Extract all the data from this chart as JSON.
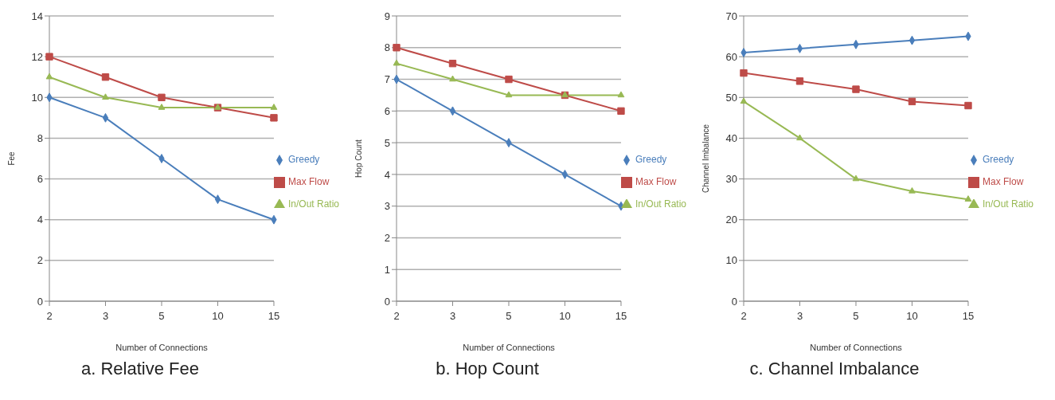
{
  "chart_data": [
    {
      "type": "line",
      "title": "a. Relative Fee",
      "xlabel": "Number of Connections",
      "ylabel": "Fee",
      "categories": [
        "2",
        "3",
        "5",
        "10",
        "15"
      ],
      "ylim": [
        0,
        14
      ],
      "yticks": [
        0,
        2,
        4,
        6,
        8,
        10,
        12,
        14
      ],
      "grid": "y",
      "legend": "right",
      "line_style": "solid",
      "series": [
        {
          "name": "Greedy",
          "color": "#4a7ebb",
          "marker": "diamond",
          "values": [
            10,
            9,
            7,
            5,
            4
          ]
        },
        {
          "name": "Max Flow",
          "color": "#be4b48",
          "marker": "square",
          "values": [
            12,
            11,
            10,
            9.5,
            9
          ]
        },
        {
          "name": "In/Out Ratio",
          "color": "#98b954",
          "marker": "triangle",
          "values": [
            11,
            10,
            9.5,
            9.5,
            9.5
          ]
        }
      ]
    },
    {
      "type": "line",
      "title": "b. Hop Count",
      "xlabel": "Number of Connections",
      "ylabel": "Hop Count",
      "categories": [
        "2",
        "3",
        "5",
        "10",
        "15"
      ],
      "ylim": [
        0,
        9
      ],
      "yticks": [
        0,
        1,
        2,
        3,
        4,
        5,
        6,
        7,
        8,
        9
      ],
      "grid": "y",
      "legend": "right",
      "line_style": "solid",
      "series": [
        {
          "name": "Greedy",
          "color": "#4a7ebb",
          "marker": "diamond",
          "values": [
            7,
            6,
            5,
            4,
            3
          ]
        },
        {
          "name": "Max Flow",
          "color": "#be4b48",
          "marker": "square",
          "values": [
            8,
            7.5,
            7,
            6.5,
            6
          ]
        },
        {
          "name": "In/Out Ratio",
          "color": "#98b954",
          "marker": "triangle",
          "values": [
            7.5,
            7,
            6.5,
            6.5,
            6.5
          ]
        }
      ]
    },
    {
      "type": "line",
      "title": "c. Channel Imbalance",
      "xlabel": "Number of Connections",
      "ylabel": "Channel Imbalance",
      "categories": [
        "2",
        "3",
        "5",
        "10",
        "15"
      ],
      "ylim": [
        0,
        70
      ],
      "yticks": [
        0,
        10,
        20,
        30,
        40,
        50,
        60,
        70
      ],
      "grid": "y",
      "legend": "right",
      "line_style": "solid",
      "series": [
        {
          "name": "Greedy",
          "color": "#4a7ebb",
          "marker": "diamond",
          "values": [
            61,
            62,
            63,
            64,
            65
          ]
        },
        {
          "name": "Max Flow",
          "color": "#be4b48",
          "marker": "square",
          "values": [
            56,
            54,
            52,
            49,
            48
          ]
        },
        {
          "name": "In/Out Ratio",
          "color": "#98b954",
          "marker": "triangle",
          "values": [
            49,
            40,
            30,
            27,
            25
          ]
        }
      ]
    }
  ]
}
